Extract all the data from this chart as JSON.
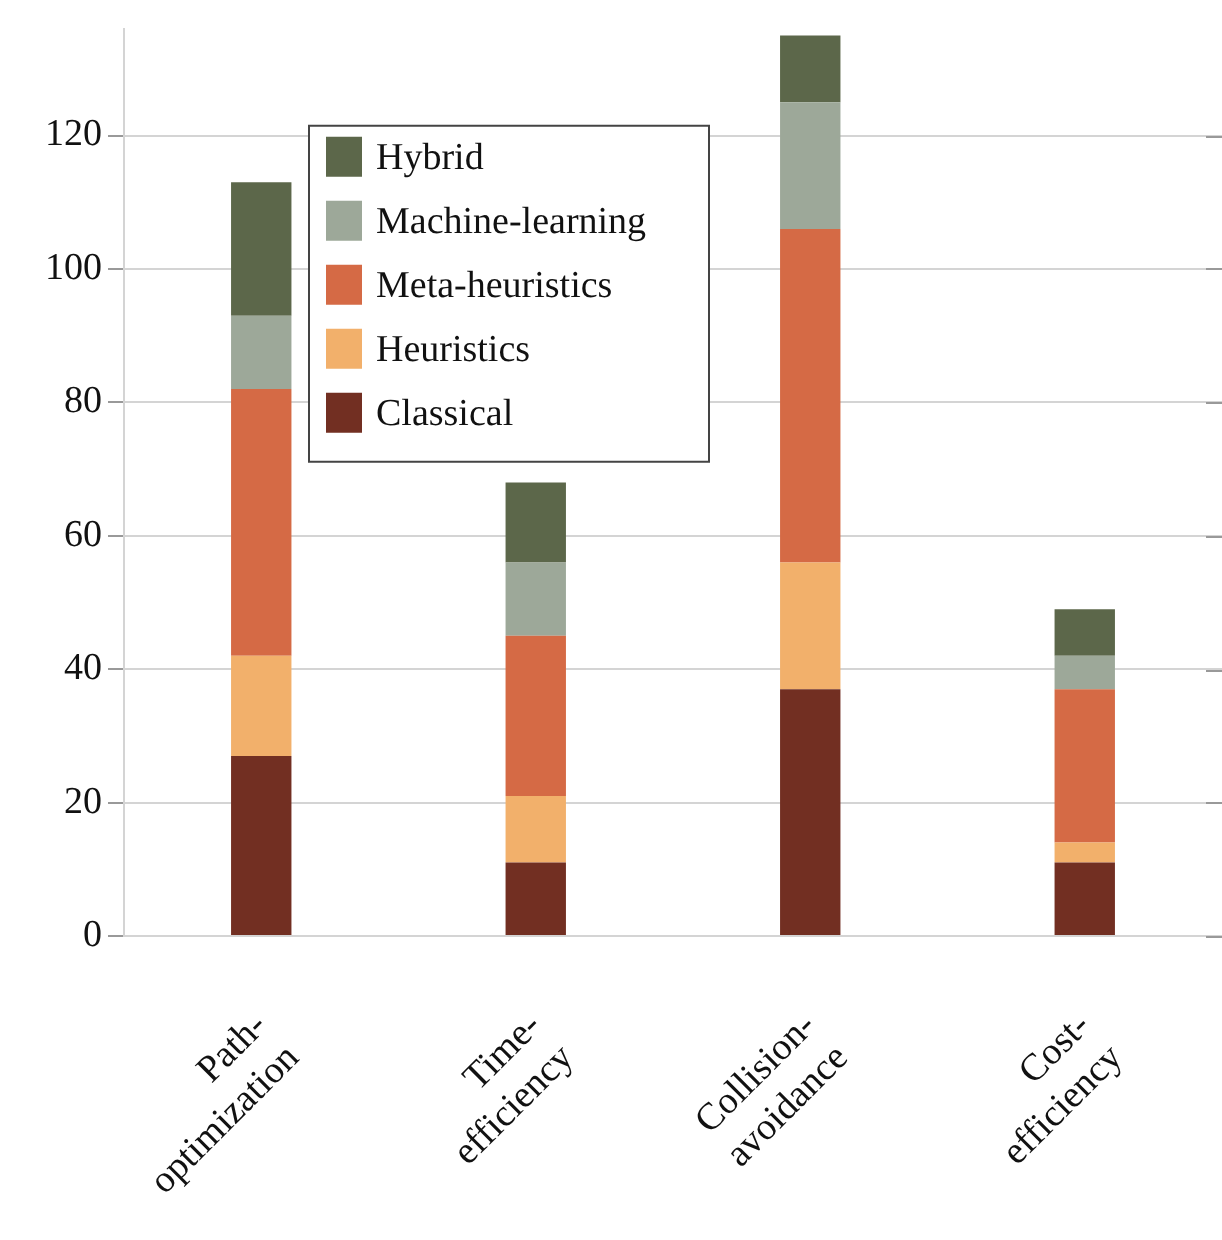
{
  "chart_data": {
    "type": "bar",
    "stacked": true,
    "categories": [
      "Path-optimization",
      "Time-efficiency",
      "Collision-avoidance",
      "Cost-efficiency"
    ],
    "series": [
      {
        "name": "Classical",
        "color": "#722f22",
        "values": [
          27,
          11,
          37,
          11
        ]
      },
      {
        "name": "Heuristics",
        "color": "#f2b06b",
        "values": [
          15,
          10,
          19,
          3
        ]
      },
      {
        "name": "Meta-heuristics",
        "color": "#d56a45",
        "values": [
          40,
          24,
          50,
          23
        ]
      },
      {
        "name": "Machine-learning",
        "color": "#9da899",
        "values": [
          11,
          11,
          19,
          5
        ]
      },
      {
        "name": "Hybrid",
        "color": "#5c674a",
        "values": [
          20,
          12,
          10,
          7
        ]
      }
    ],
    "ylim": [
      0,
      136
    ],
    "yticks": [
      0,
      20,
      40,
      60,
      80,
      100,
      120
    ],
    "grid": "y",
    "legend": "top left"
  }
}
